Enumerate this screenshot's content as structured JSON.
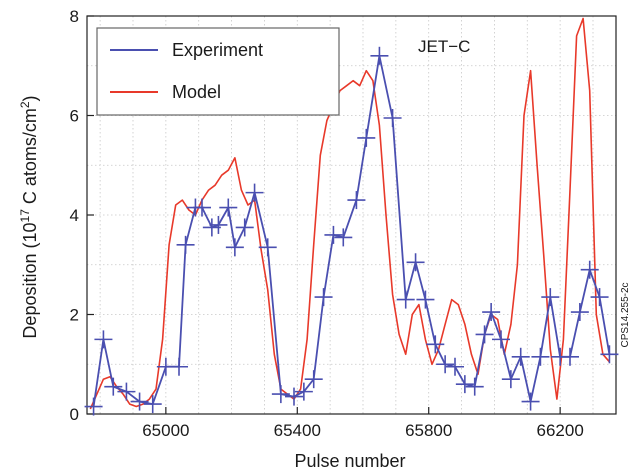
{
  "chart_data": {
    "type": "line",
    "xlabel": "Pulse number",
    "ylabel_main": "Deposition (10",
    "ylabel_exp1": "17",
    "ylabel_mid": " C atoms/cm",
    "ylabel_exp2": "2",
    "ylabel_end": ")",
    "xlim": [
      64760,
      66370
    ],
    "ylim": [
      0,
      8
    ],
    "xticks": [
      65000,
      65400,
      65800,
      66200
    ],
    "xtick_labels": [
      "65000",
      "65400",
      "65800",
      "66200"
    ],
    "yticks": [
      0,
      2,
      4,
      6,
      8
    ],
    "ytick_labels": [
      "0",
      "2",
      "4",
      "6",
      "8"
    ],
    "grid": true,
    "legend_position": "top-left",
    "annotation": "JET−C",
    "side_code": "CPS14.255-2c",
    "colors": {
      "experiment": "#4a4fb0",
      "model": "#e8392a"
    },
    "series": [
      {
        "name": "Experiment",
        "marker": "plus",
        "x": [
          64780,
          64810,
          64840,
          64880,
          64920,
          64960,
          65000,
          65040,
          65060,
          65090,
          65110,
          65140,
          65160,
          65190,
          65210,
          65240,
          65270,
          65310,
          65350,
          65390,
          65420,
          65450,
          65480,
          65510,
          65540,
          65580,
          65610,
          65650,
          65690,
          65730,
          65760,
          65790,
          65820,
          65850,
          65880,
          65910,
          65940,
          65970,
          65990,
          66020,
          66050,
          66080,
          66110,
          66140,
          66170,
          66200,
          66230,
          66260,
          66290,
          66320,
          66350
        ],
        "y": [
          0.15,
          1.5,
          0.55,
          0.45,
          0.25,
          0.2,
          0.95,
          0.95,
          3.4,
          4.15,
          4.15,
          3.75,
          3.8,
          4.15,
          3.35,
          3.75,
          4.45,
          3.35,
          0.4,
          0.35,
          0.45,
          0.7,
          2.35,
          3.6,
          3.55,
          4.3,
          5.55,
          7.2,
          5.95,
          2.3,
          3.05,
          2.3,
          1.4,
          1.0,
          0.95,
          0.6,
          0.55,
          1.6,
          2.05,
          1.5,
          0.7,
          1.15,
          0.25,
          1.15,
          2.35,
          1.15,
          1.15,
          2.05,
          2.9,
          2.35,
          1.2
        ]
      },
      {
        "name": "Model",
        "x": [
          64770,
          64790,
          64810,
          64830,
          64850,
          64870,
          64890,
          64910,
          64930,
          64950,
          64970,
          64990,
          65010,
          65030,
          65050,
          65070,
          65090,
          65110,
          65130,
          65150,
          65170,
          65190,
          65210,
          65230,
          65250,
          65270,
          65290,
          65310,
          65330,
          65350,
          65370,
          65390,
          65410,
          65430,
          65450,
          65470,
          65490,
          65510,
          65530,
          65550,
          65570,
          65590,
          65610,
          65630,
          65650,
          65670,
          65690,
          65710,
          65730,
          65750,
          65770,
          65790,
          65810,
          65830,
          65850,
          65870,
          65890,
          65910,
          65930,
          65950,
          65970,
          65990,
          66010,
          66030,
          66050,
          66070,
          66090,
          66110,
          66130,
          66150,
          66170,
          66190,
          66210,
          66230,
          66250,
          66270,
          66290,
          66310,
          66330,
          66350
        ],
        "y": [
          0.1,
          0.4,
          0.7,
          0.75,
          0.55,
          0.4,
          0.2,
          0.15,
          0.2,
          0.3,
          0.5,
          1.5,
          3.4,
          4.2,
          4.3,
          4.1,
          4.0,
          4.3,
          4.5,
          4.6,
          4.8,
          4.9,
          5.15,
          4.5,
          4.2,
          4.3,
          3.3,
          2.5,
          1.2,
          0.5,
          0.4,
          0.3,
          0.5,
          1.5,
          3.4,
          5.2,
          5.9,
          6.2,
          6.5,
          6.6,
          6.7,
          6.6,
          6.9,
          6.7,
          5.8,
          4.0,
          2.4,
          1.6,
          1.2,
          2.0,
          2.2,
          1.5,
          1.0,
          1.3,
          1.8,
          2.3,
          2.2,
          1.8,
          1.2,
          0.8,
          1.6,
          2.0,
          1.9,
          1.2,
          1.8,
          3.0,
          6.0,
          6.9,
          5.0,
          3.2,
          1.3,
          0.3,
          1.5,
          4.5,
          7.6,
          7.95,
          6.5,
          2.0,
          1.2,
          1.05
        ]
      }
    ]
  }
}
